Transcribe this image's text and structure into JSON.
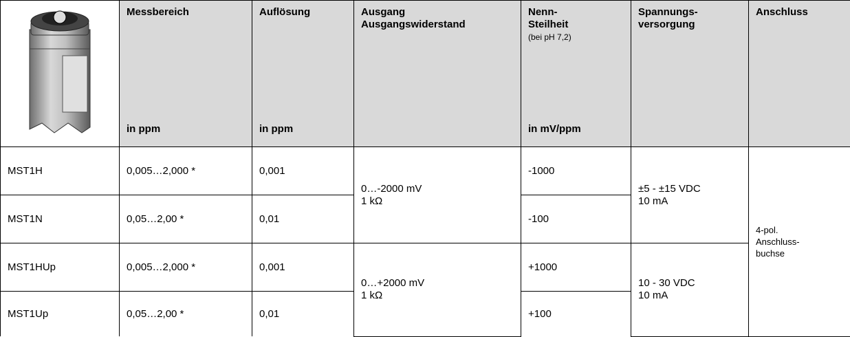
{
  "header": {
    "columns": [
      {
        "title": "Messbereich",
        "unit": "in ppm"
      },
      {
        "title": "Auflösung",
        "unit": "in ppm"
      },
      {
        "title_lines": [
          "Ausgang",
          "Ausgangswiderstand"
        ]
      },
      {
        "title_lines": [
          "Nenn-",
          "Steilheit"
        ],
        "note": "(bei pH 7,2)",
        "unit": "in mV/ppm"
      },
      {
        "title_lines": [
          "Spannungs-",
          "versorgung"
        ]
      },
      {
        "title": "Anschluss"
      }
    ]
  },
  "rows": [
    {
      "model": "MST1H",
      "range": "0,005…2,000 *",
      "resolution": "0,001",
      "slope": "-1000"
    },
    {
      "model": "MST1N",
      "range": "0,05…2,00 *",
      "resolution": "0,01",
      "slope": "-100"
    },
    {
      "model": "MST1HUp",
      "range": "0,005…2,000 *",
      "resolution": "0,001",
      "slope": "+1000"
    },
    {
      "model": "MST1Up",
      "range": "0,05…2,00 *",
      "resolution": "0,01",
      "slope": "+100"
    }
  ],
  "output_groups": [
    [
      "0…-2000 mV",
      "1 kΩ"
    ],
    [
      "0…+2000 mV",
      "1 kΩ"
    ]
  ],
  "supply_groups": [
    [
      "±5 - ±15 VDC",
      "10 mA"
    ],
    [
      "10 - 30 VDC",
      "10 mA"
    ]
  ],
  "connection": [
    "4-pol.",
    "Anschluss-",
    "buchse"
  ]
}
